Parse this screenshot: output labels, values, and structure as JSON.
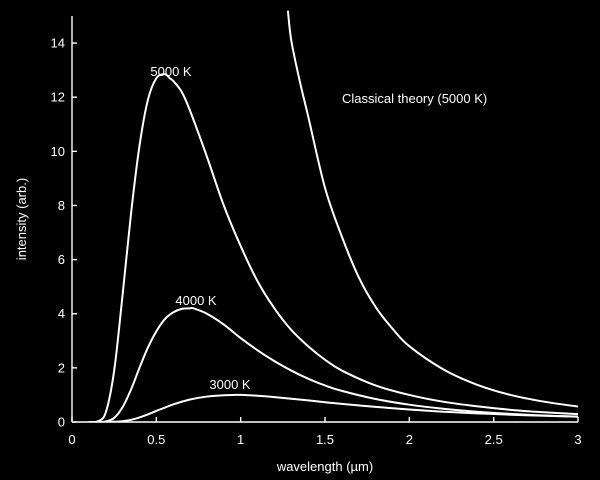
{
  "chart_data": {
    "type": "line",
    "title": "",
    "xlabel": "wavelength (µm)",
    "ylabel": "intensity (arb.)",
    "xlim": [
      0,
      3
    ],
    "ylim": [
      0,
      15
    ],
    "x_ticks": [
      0,
      0.5,
      1,
      1.5,
      2,
      2.5,
      3
    ],
    "x_tick_labels": [
      "0",
      "0.5",
      "1",
      "1.5",
      "2",
      "2.5",
      "3"
    ],
    "y_ticks": [
      0,
      2,
      4,
      6,
      8,
      10,
      12,
      14
    ],
    "y_tick_labels": [
      "0",
      "2",
      "4",
      "6",
      "8",
      "10",
      "12",
      "14"
    ],
    "grid": false,
    "colors": {
      "background": "#000000",
      "foreground": "#ffffff"
    },
    "series": [
      {
        "annotation": "5000 K",
        "x": [
          0.1,
          0.15,
          0.2,
          0.25,
          0.3,
          0.35,
          0.4,
          0.45,
          0.5,
          0.55,
          0.58,
          0.6,
          0.65,
          0.7,
          0.8,
          0.9,
          1.0,
          1.1,
          1.2,
          1.3,
          1.4,
          1.5,
          1.6,
          1.8,
          2.0,
          2.2,
          2.4,
          2.6,
          2.8,
          3.0
        ],
        "y": [
          0,
          0.02,
          0.35,
          1.9,
          4.7,
          7.7,
          10.2,
          11.9,
          12.7,
          12.85,
          12.7,
          12.6,
          12.2,
          11.5,
          9.8,
          8.0,
          6.5,
          5.2,
          4.2,
          3.4,
          2.8,
          2.3,
          1.9,
          1.35,
          1.0,
          0.75,
          0.58,
          0.45,
          0.36,
          0.29
        ]
      },
      {
        "annotation": "4000 K",
        "x": [
          0.1,
          0.15,
          0.2,
          0.25,
          0.3,
          0.35,
          0.4,
          0.45,
          0.5,
          0.55,
          0.6,
          0.65,
          0.7,
          0.72,
          0.8,
          0.9,
          1.0,
          1.1,
          1.2,
          1.3,
          1.4,
          1.5,
          1.6,
          1.8,
          2.0,
          2.2,
          2.4,
          2.6,
          2.8,
          3.0
        ],
        "y": [
          0,
          0,
          0.02,
          0.15,
          0.55,
          1.2,
          2.0,
          2.75,
          3.35,
          3.8,
          4.05,
          4.18,
          4.2,
          4.2,
          4.0,
          3.6,
          3.1,
          2.65,
          2.25,
          1.9,
          1.6,
          1.35,
          1.15,
          0.85,
          0.64,
          0.49,
          0.38,
          0.3,
          0.24,
          0.2
        ]
      },
      {
        "annotation": "3000 K",
        "x": [
          0.1,
          0.2,
          0.25,
          0.3,
          0.35,
          0.4,
          0.45,
          0.5,
          0.55,
          0.6,
          0.7,
          0.8,
          0.9,
          0.97,
          1.0,
          1.1,
          1.2,
          1.3,
          1.4,
          1.5,
          1.6,
          1.8,
          2.0,
          2.2,
          2.4,
          2.6,
          2.8,
          3.0
        ],
        "y": [
          0,
          0,
          0.01,
          0.03,
          0.08,
          0.17,
          0.28,
          0.41,
          0.53,
          0.65,
          0.83,
          0.94,
          0.99,
          1.0,
          1.0,
          0.97,
          0.92,
          0.86,
          0.8,
          0.73,
          0.67,
          0.56,
          0.46,
          0.38,
          0.32,
          0.27,
          0.23,
          0.2
        ]
      },
      {
        "annotation": "Classical theory (5000 K)",
        "x": [
          1.28,
          1.3,
          1.35,
          1.4,
          1.5,
          1.6,
          1.7,
          1.8,
          1.9,
          2.0,
          2.2,
          2.4,
          2.6,
          2.8,
          3.0
        ],
        "y": [
          15.2,
          14.1,
          12.6,
          11.3,
          8.65,
          6.85,
          5.35,
          4.25,
          3.45,
          2.8,
          1.95,
          1.38,
          1.0,
          0.75,
          0.57
        ]
      }
    ]
  }
}
